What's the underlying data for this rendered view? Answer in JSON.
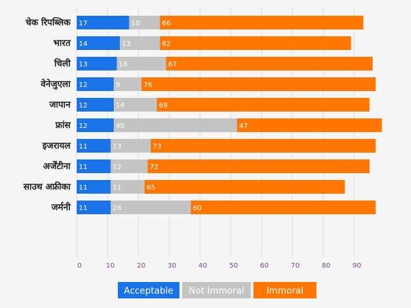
{
  "chart_data": {
    "type": "bar",
    "orientation": "horizontal",
    "stacked": true,
    "categories": [
      "चेक रिपब्लिक",
      "भारत",
      "चिली",
      "वेनेजुएला",
      "जापान",
      "फ्रांस",
      "इजरायल",
      "अर्जेंटीना",
      "साउथ अफ्रीका",
      "जर्मनी"
    ],
    "series": [
      {
        "name": "Acceptable",
        "color": "#1a73e8",
        "values": [
          17,
          14,
          13,
          12,
          12,
          12,
          11,
          11,
          11,
          11
        ]
      },
      {
        "name": "Not Immoral",
        "color": "#c4c4c4",
        "values": [
          10,
          13,
          16,
          9,
          14,
          40,
          13,
          12,
          11,
          26
        ]
      },
      {
        "name": "Immoral",
        "color": "#ff7700",
        "values": [
          66,
          62,
          67,
          76,
          69,
          47,
          73,
          72,
          65,
          60
        ]
      }
    ],
    "xticks": [
      "0",
      "10",
      "20",
      "30",
      "40",
      "50",
      "60",
      "70",
      "80",
      "90"
    ],
    "xlim": [
      0,
      100
    ],
    "grid": true,
    "legend_position": "bottom-center"
  }
}
